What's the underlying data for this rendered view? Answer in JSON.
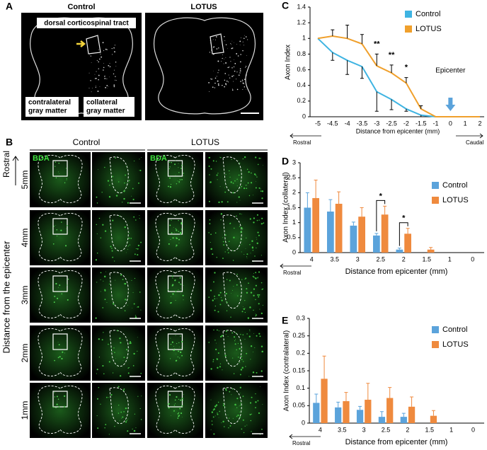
{
  "panel_a": {
    "label": "A",
    "control": "Control",
    "lotus": "LOTUS",
    "tract": "dorsal corticospinal tract",
    "contralateral": [
      "contralateral",
      "gray matter"
    ],
    "collateral": [
      "collateral",
      "gray matter"
    ]
  },
  "panel_b": {
    "label": "B",
    "control": "Control",
    "lotus": "LOTUS",
    "stain": "BDA",
    "direction": "Rostral",
    "rows": [
      "5mm",
      "4mm",
      "3mm",
      "2mm",
      "1mm"
    ],
    "axis_label": "Distance from the epicenter"
  },
  "chart_data": [
    {
      "type": "line",
      "label": "C",
      "y_label": "Axon Index",
      "x_label": "Distance from epicenter (mm)",
      "categories": [
        "-5",
        "-4.5",
        "-4",
        "-3.5",
        "-3",
        "-2.5",
        "-2",
        "-1.5",
        "-1",
        "0",
        "1",
        "2"
      ],
      "series": [
        {
          "name": "Control",
          "color": "#3fb4e2",
          "values": [
            1,
            0.82,
            0.72,
            0.64,
            0.32,
            0.22,
            0.1,
            0.02,
            0,
            0,
            0,
            0
          ],
          "errors": [
            0,
            0.1,
            0.18,
            0.15,
            0.25,
            0.13,
            0.03,
            0.02,
            0,
            0,
            0,
            0
          ]
        },
        {
          "name": "LOTUS",
          "color": "#f0a02c",
          "values": [
            1,
            1.03,
            1,
            0.93,
            0.65,
            0.56,
            0.43,
            0.1,
            0,
            0,
            0,
            0
          ],
          "errors": [
            0,
            0.08,
            0.17,
            0.12,
            0.15,
            0.1,
            0.07,
            0.04,
            0,
            0,
            0,
            0
          ]
        }
      ],
      "ylim": [
        0,
        1.4
      ],
      "yticks": [
        0,
        0.2,
        0.4,
        0.6,
        0.8,
        1,
        1.2,
        1.4
      ],
      "annotations": [
        {
          "text": "**",
          "x": "-3"
        },
        {
          "text": "**",
          "x": "-2.5"
        },
        {
          "text": "*",
          "x": "-2"
        }
      ],
      "marker": {
        "text": "Epicenter",
        "x": "0"
      },
      "direction_labels": [
        "Rostral",
        "Caudal"
      ]
    },
    {
      "type": "bar",
      "label": "D",
      "y_label": "Axon Index (collateral)",
      "x_label": "Distance from epicenter (mm)",
      "categories": [
        "4",
        "3.5",
        "3",
        "2.5",
        "2",
        "1.5",
        "1",
        "0"
      ],
      "series": [
        {
          "name": "Control",
          "color": "#5ba3db",
          "values": [
            1.5,
            1.37,
            0.9,
            0.57,
            0.1,
            0,
            0,
            0
          ],
          "errors": [
            0.5,
            0.4,
            0.12,
            0.07,
            0.05,
            0,
            0,
            0
          ]
        },
        {
          "name": "LOTUS",
          "color": "#ef8a3e",
          "values": [
            1.82,
            1.63,
            1.2,
            1.27,
            0.63,
            0.1,
            0,
            0
          ],
          "errors": [
            0.6,
            0.4,
            0.3,
            0.28,
            0.18,
            0.07,
            0,
            0
          ]
        }
      ],
      "ylim": [
        0,
        3
      ],
      "yticks": [
        0,
        0.5,
        1,
        1.5,
        2,
        2.5,
        3
      ],
      "annotations": [
        {
          "text": "*",
          "x": "2.5"
        },
        {
          "text": "*",
          "x": "2"
        }
      ],
      "direction_labels": [
        "Rostral"
      ]
    },
    {
      "type": "bar",
      "label": "E",
      "y_label": "Axon Index (contralateral)",
      "x_label": "Distance from epicenter (mm)",
      "categories": [
        "4",
        "3.5",
        "3",
        "2.5",
        "2",
        "1.5",
        "1",
        "0"
      ],
      "series": [
        {
          "name": "Control",
          "color": "#5ba3db",
          "values": [
            0.058,
            0.045,
            0.038,
            0.018,
            0.018,
            0,
            0,
            0
          ],
          "errors": [
            0.025,
            0.015,
            0.01,
            0.015,
            0.01,
            0,
            0,
            0
          ]
        },
        {
          "name": "LOTUS",
          "color": "#ef8a3e",
          "values": [
            0.127,
            0.063,
            0.067,
            0.072,
            0.047,
            0.021,
            0,
            0
          ],
          "errors": [
            0.065,
            0.025,
            0.047,
            0.03,
            0.028,
            0.015,
            0,
            0
          ]
        }
      ],
      "ylim": [
        0,
        0.3
      ],
      "yticks": [
        0,
        0.05,
        0.1,
        0.15,
        0.2,
        0.25,
        0.3
      ],
      "annotations": [],
      "direction_labels": [
        "Rostral"
      ]
    }
  ]
}
